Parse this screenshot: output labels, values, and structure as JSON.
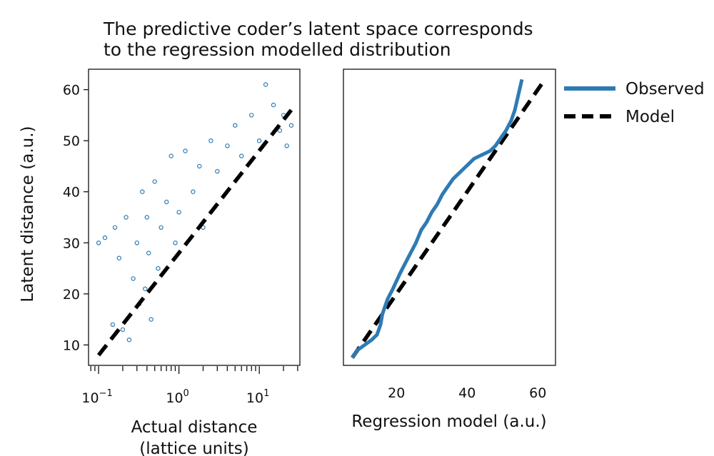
{
  "figure": {
    "title_lines": [
      "The predictive coder’s latent space corresponds",
      "to the regression modelled distribution"
    ],
    "ylabel": "Latent distance (a.u.)"
  },
  "colors": {
    "observed": "#2e7bb4",
    "model": "#000000",
    "axis": "#111111"
  },
  "chart_data": [
    {
      "type": "scatter",
      "title": "",
      "xlabel": "Actual distance",
      "xlabel_line2": "(lattice units)",
      "ylabel": "Latent distance (a.u.)",
      "x_scale": "log",
      "xlim": [
        0.075,
        32
      ],
      "ylim": [
        6,
        64
      ],
      "x_ticks": [
        {
          "value": 0.1,
          "base": "10",
          "exp": "−1"
        },
        {
          "value": 1,
          "base": "10",
          "exp": "0"
        },
        {
          "value": 10,
          "base": "10",
          "exp": "1"
        }
      ],
      "y_ticks": [
        10,
        20,
        30,
        40,
        50,
        60
      ],
      "grid": false,
      "points": [
        [
          0.1,
          30
        ],
        [
          0.12,
          31
        ],
        [
          0.15,
          14
        ],
        [
          0.16,
          33
        ],
        [
          0.18,
          27
        ],
        [
          0.2,
          13
        ],
        [
          0.22,
          35
        ],
        [
          0.24,
          11
        ],
        [
          0.27,
          23
        ],
        [
          0.3,
          30
        ],
        [
          0.32,
          18
        ],
        [
          0.35,
          40
        ],
        [
          0.38,
          21
        ],
        [
          0.4,
          35
        ],
        [
          0.42,
          28
        ],
        [
          0.45,
          15
        ],
        [
          0.5,
          42
        ],
        [
          0.55,
          25
        ],
        [
          0.6,
          33
        ],
        [
          0.7,
          38
        ],
        [
          0.8,
          47
        ],
        [
          0.9,
          30
        ],
        [
          1.0,
          36
        ],
        [
          1.2,
          48
        ],
        [
          1.5,
          40
        ],
        [
          1.8,
          45
        ],
        [
          2.0,
          33
        ],
        [
          2.5,
          50
        ],
        [
          3.0,
          44
        ],
        [
          4.0,
          49
        ],
        [
          5.0,
          53
        ],
        [
          6.0,
          47
        ],
        [
          8.0,
          55
        ],
        [
          10.0,
          50
        ],
        [
          12.0,
          61
        ],
        [
          15.0,
          57
        ],
        [
          18.0,
          52
        ],
        [
          20.0,
          55
        ],
        [
          22.0,
          49
        ],
        [
          25.0,
          53
        ]
      ],
      "model_line": {
        "x": [
          0.1,
          25
        ],
        "y": [
          8,
          56
        ],
        "name": "Model"
      }
    },
    {
      "type": "line",
      "title": "",
      "xlabel": "Regression model (a.u.)",
      "xlim": [
        5,
        65
      ],
      "ylim": [
        6,
        64
      ],
      "x_ticks": [
        20,
        40,
        60
      ],
      "grid": false,
      "series": [
        {
          "name": "Observed",
          "x": [
            7.5,
            9,
            11,
            13,
            14.5,
            15.5,
            16,
            16.5,
            17.5,
            19,
            21,
            22.5,
            24,
            25.5,
            27,
            28.5,
            30,
            31.5,
            33,
            34.5,
            36,
            37.5,
            39,
            40.5,
            42,
            43.5,
            45,
            46.5,
            48,
            49.5,
            51,
            52.5,
            53.5,
            54.5,
            55.5
          ],
          "y": [
            7.5,
            9,
            10,
            11,
            12,
            14,
            16,
            17,
            19,
            21,
            24,
            26,
            28,
            30,
            32.5,
            34,
            36,
            37.5,
            39.5,
            41,
            42.5,
            43.5,
            44.5,
            45.5,
            46.5,
            47,
            47.5,
            48,
            49,
            50.5,
            52,
            54,
            56,
            59,
            62
          ]
        },
        {
          "name": "Model",
          "x": [
            7.5,
            62
          ],
          "y": [
            7.5,
            62
          ]
        }
      ],
      "legend": {
        "placement": "top-right-outside",
        "entries": [
          "Observed",
          "Model"
        ]
      }
    }
  ]
}
